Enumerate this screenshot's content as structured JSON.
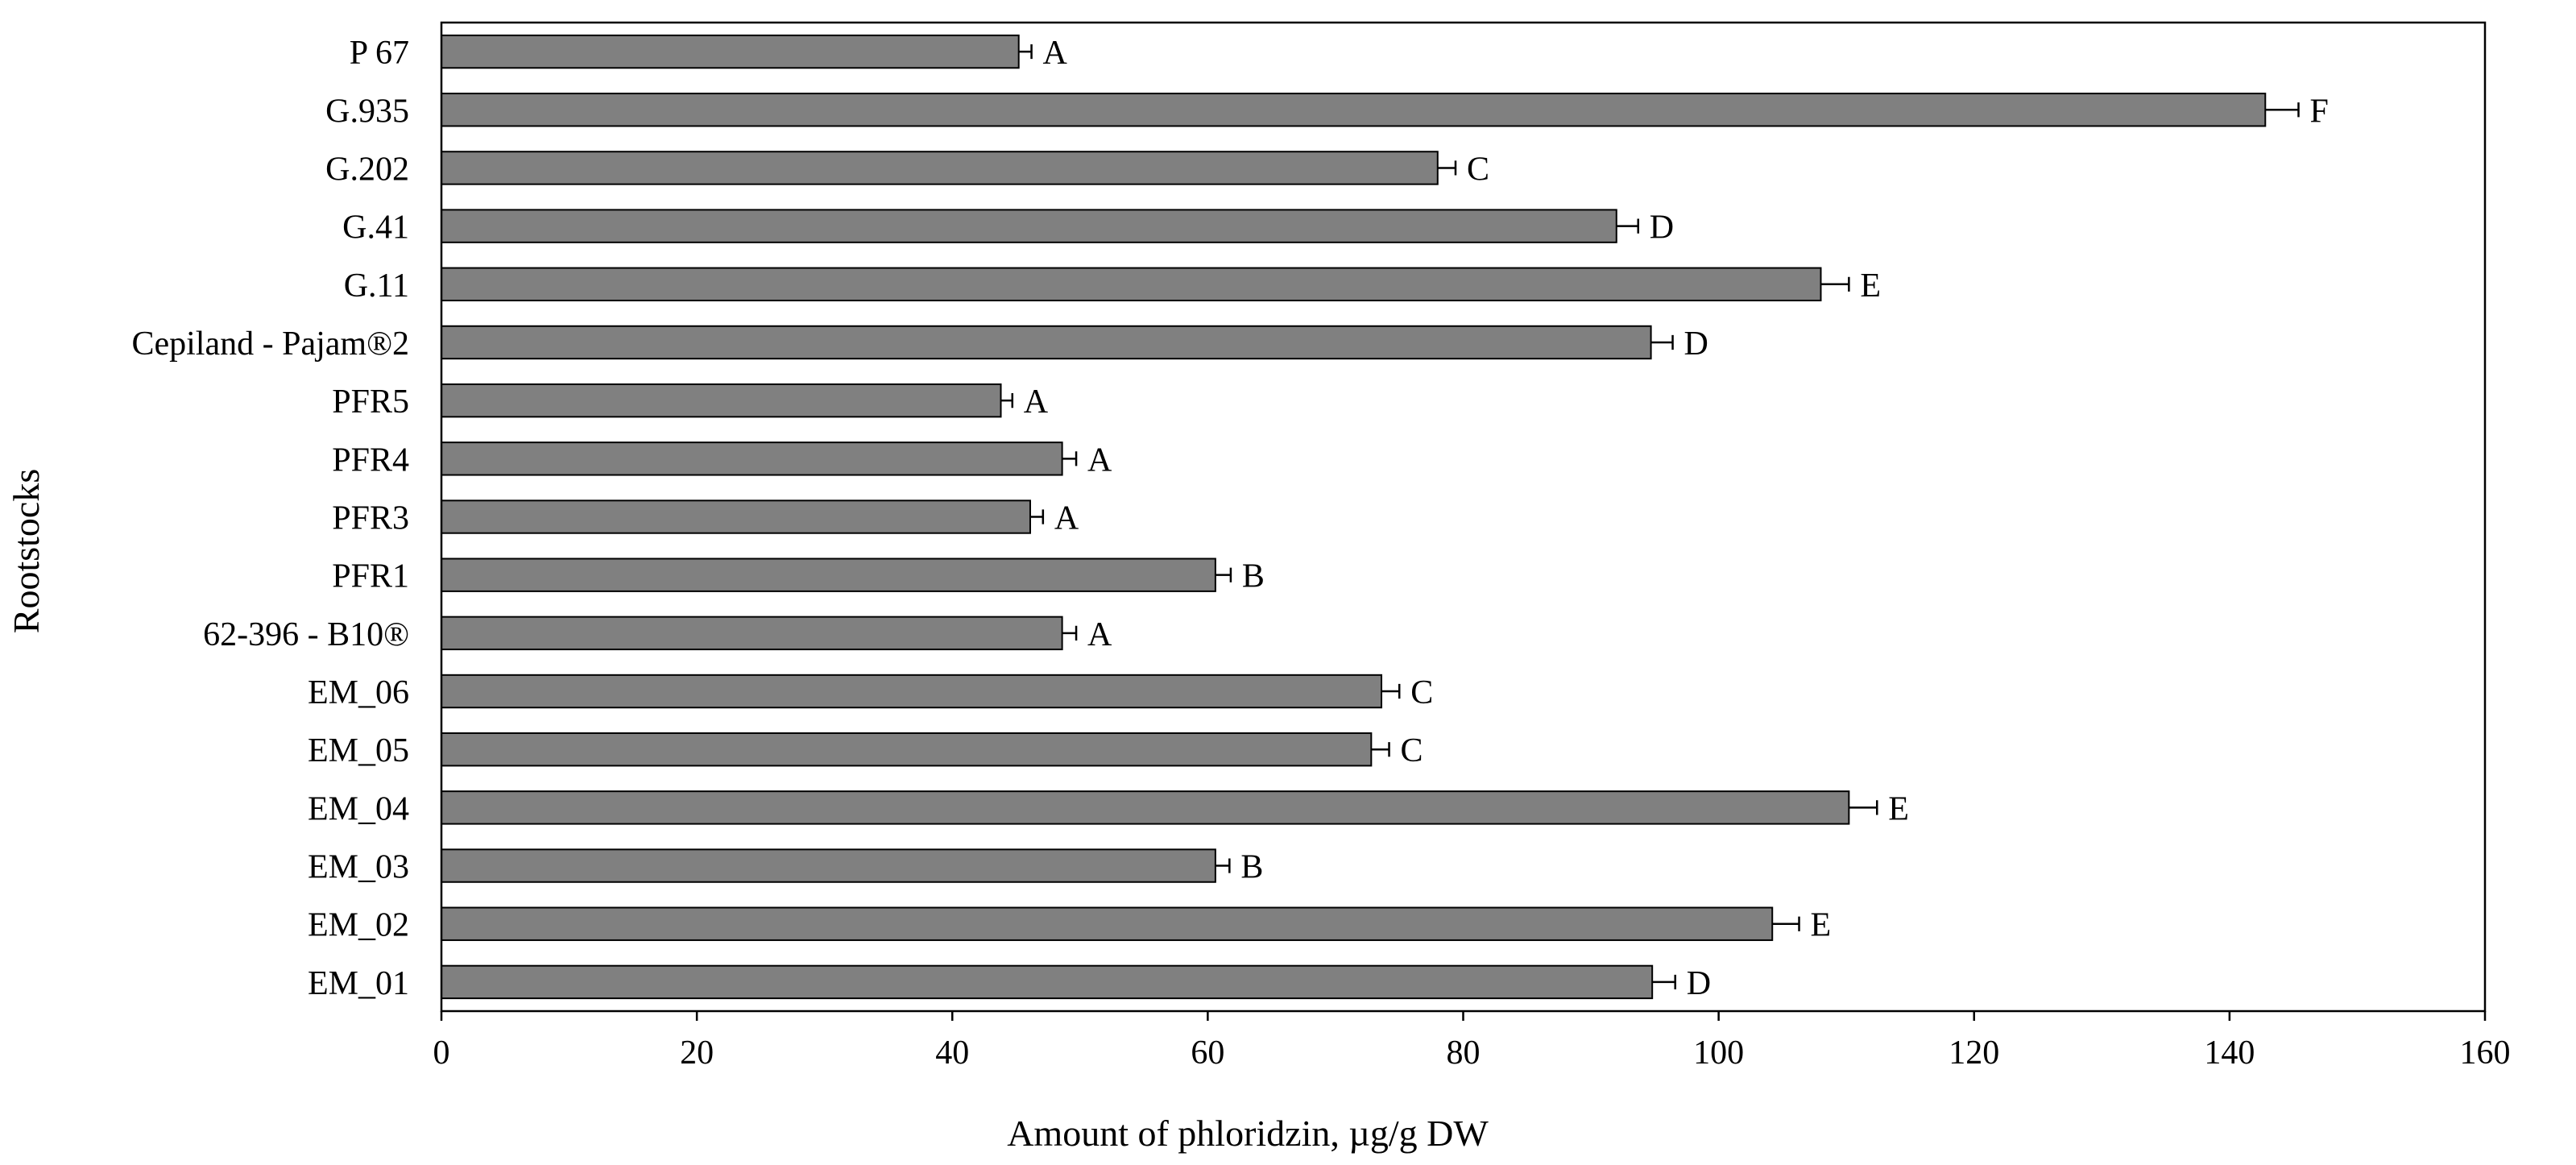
{
  "colors": {
    "bar": "#808080",
    "axis": "#000000",
    "background": "#ffffff"
  },
  "chart_data": {
    "type": "bar",
    "orientation": "horizontal",
    "title": "",
    "xlabel": "Amount of phloridzin, µg/g DW",
    "ylabel": "Rootstocks",
    "xlim": [
      0,
      160
    ],
    "xticks": [
      "0",
      "20",
      "40",
      "60",
      "80",
      "100",
      "120",
      "140",
      "160"
    ],
    "grid": false,
    "categories": [
      "P 67",
      "G.935",
      "G.202",
      "G.41",
      "G.11",
      "Cepiland - Pajam®2",
      "PFR5",
      "PFR4",
      "PFR3",
      "PFR1",
      "62-396 - B10®",
      "EM_06",
      "EM_05",
      "EM_04",
      "EM_03",
      "EM_02",
      "EM_01"
    ],
    "values": [
      45.2,
      142.8,
      78.0,
      92.0,
      108.0,
      94.7,
      43.8,
      48.6,
      46.1,
      60.6,
      48.6,
      73.6,
      72.8,
      110.2,
      60.6,
      104.2,
      94.8
    ],
    "errors": [
      1.0,
      2.6,
      1.4,
      1.7,
      2.2,
      1.7,
      0.9,
      1.1,
      1.0,
      1.2,
      1.1,
      1.4,
      1.4,
      2.2,
      1.1,
      2.1,
      1.8
    ],
    "significance": [
      "A",
      "F",
      "C",
      "D",
      "E",
      "D",
      "A",
      "A",
      "A",
      "B",
      "A",
      "C",
      "C",
      "E",
      "B",
      "E",
      "D"
    ]
  }
}
